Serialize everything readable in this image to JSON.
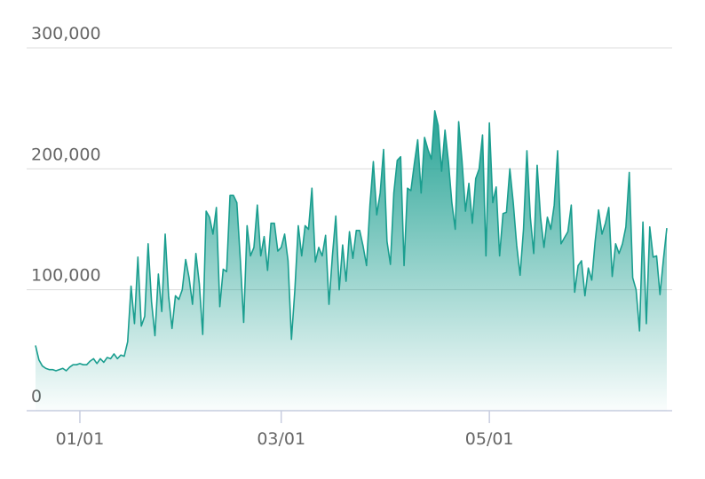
{
  "chart_data": {
    "type": "area",
    "categories": [
      null,
      null,
      null,
      null,
      null,
      null,
      null,
      null,
      null,
      null,
      null,
      null,
      null,
      "01/01",
      null,
      null,
      null,
      null,
      null,
      null,
      null,
      null,
      null,
      null,
      null,
      null,
      null,
      null,
      null,
      null,
      null,
      null,
      null,
      null,
      null,
      null,
      null,
      null,
      null,
      null,
      null,
      null,
      null,
      null,
      null,
      null,
      null,
      null,
      null,
      null,
      null,
      null,
      null,
      null,
      null,
      null,
      null,
      null,
      null,
      null,
      null,
      null,
      null,
      null,
      null,
      null,
      null,
      null,
      null,
      null,
      null,
      null,
      "03/01",
      null,
      null,
      null,
      null,
      null,
      null,
      null,
      null,
      null,
      null,
      null,
      null,
      null,
      null,
      null,
      null,
      null,
      null,
      null,
      null,
      null,
      null,
      null,
      null,
      null,
      null,
      null,
      null,
      null,
      null,
      null,
      null,
      null,
      null,
      null,
      null,
      null,
      null,
      null,
      null,
      null,
      null,
      null,
      null,
      null,
      null,
      null,
      null,
      null,
      null,
      null,
      null,
      null,
      null,
      null,
      null,
      null,
      null,
      null,
      null,
      "05/01",
      null,
      null,
      null,
      null,
      null,
      null,
      null,
      null,
      null,
      null,
      null,
      null,
      null,
      null,
      null,
      null,
      null,
      null,
      null,
      null,
      null,
      null,
      null,
      null,
      null,
      null,
      null,
      null,
      null,
      null,
      null,
      null,
      null,
      null,
      null,
      null,
      null,
      null,
      null,
      null,
      null,
      null,
      null,
      null,
      null,
      null,
      null,
      null,
      null,
      null,
      null,
      null
    ],
    "values": [
      54000,
      42000,
      37000,
      35000,
      34000,
      34000,
      33000,
      34000,
      35000,
      33000,
      36000,
      38000,
      38000,
      39000,
      38000,
      38000,
      41000,
      43000,
      39000,
      43000,
      40000,
      44000,
      43000,
      47000,
      43000,
      46000,
      45000,
      57000,
      103000,
      72000,
      127000,
      70000,
      78000,
      138000,
      90000,
      62000,
      113000,
      82000,
      146000,
      95000,
      68000,
      95000,
      92000,
      100000,
      125000,
      110000,
      88000,
      130000,
      105000,
      63000,
      165000,
      160000,
      146000,
      168000,
      86000,
      117000,
      115000,
      178000,
      178000,
      172000,
      126000,
      73000,
      153000,
      128000,
      135000,
      170000,
      128000,
      144000,
      116000,
      155000,
      155000,
      132000,
      135000,
      146000,
      124000,
      59000,
      100000,
      153000,
      128000,
      153000,
      150000,
      184000,
      123000,
      135000,
      128000,
      145000,
      88000,
      128000,
      161000,
      100000,
      137000,
      107000,
      148000,
      126000,
      149000,
      149000,
      136000,
      120000,
      170000,
      206000,
      162000,
      180000,
      216000,
      140000,
      121000,
      180000,
      207000,
      210000,
      120000,
      184000,
      182000,
      204000,
      224000,
      180000,
      226000,
      216000,
      208000,
      248000,
      236000,
      198000,
      232000,
      206000,
      172000,
      150000,
      239000,
      206000,
      165000,
      188000,
      155000,
      192000,
      200000,
      228000,
      128000,
      238000,
      172000,
      185000,
      128000,
      163000,
      164000,
      200000,
      172000,
      137000,
      112000,
      150000,
      215000,
      160000,
      130000,
      203000,
      160000,
      135000,
      160000,
      150000,
      170000,
      215000,
      138000,
      143000,
      148000,
      170000,
      98000,
      120000,
      124000,
      95000,
      118000,
      108000,
      140000,
      166000,
      146000,
      155000,
      168000,
      111000,
      138000,
      130000,
      138000,
      152000,
      197000,
      110000,
      100000,
      66000,
      156000,
      72000,
      152000,
      127000,
      128000,
      96000,
      125000,
      151000
    ],
    "color": "#1a9e8f",
    "ylim": [
      0,
      300000
    ],
    "yticks": [
      0,
      {
        "value": 100000,
        "label": "100,000"
      },
      {
        "value": 200000,
        "label": "200,000"
      },
      {
        "value": 300000,
        "label": "300,000"
      }
    ],
    "grid": true
  }
}
